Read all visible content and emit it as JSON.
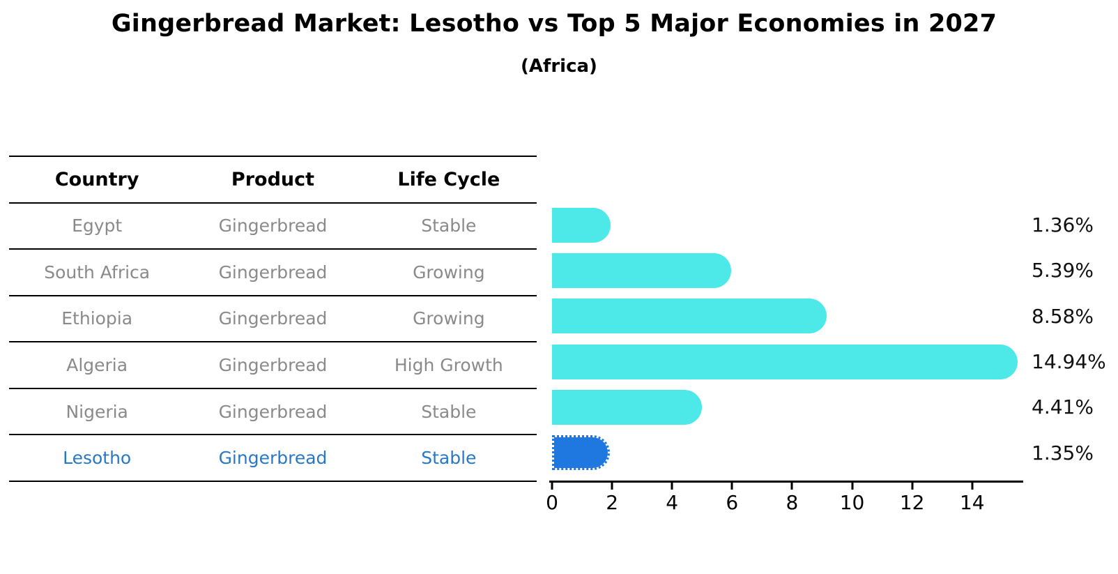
{
  "header": {
    "title": "Gingerbread Market: Lesotho vs Top 5 Major Economies in 2027",
    "subtitle": "(Africa)"
  },
  "table": {
    "headers": [
      "Country",
      "Product",
      "Life Cycle"
    ],
    "rows": [
      {
        "country": "Egypt",
        "product": "Gingerbread",
        "life_cycle": "Stable",
        "highlighted": false
      },
      {
        "country": "South Africa",
        "product": "Gingerbread",
        "life_cycle": "Growing",
        "highlighted": false
      },
      {
        "country": "Ethiopia",
        "product": "Gingerbread",
        "life_cycle": "Growing",
        "highlighted": false
      },
      {
        "country": "Algeria",
        "product": "Gingerbread",
        "life_cycle": "High Growth",
        "highlighted": false
      },
      {
        "country": "Nigeria",
        "product": "Gingerbread",
        "life_cycle": "Stable",
        "highlighted": false
      },
      {
        "country": "Lesotho",
        "product": "Gingerbread",
        "life_cycle": "Stable",
        "highlighted": true
      }
    ]
  },
  "chart_data": {
    "type": "bar",
    "orientation": "horizontal",
    "title": "Gingerbread Market: Lesotho vs Top 5 Major Economies in 2027",
    "subtitle": "(Africa)",
    "categories": [
      "Egypt",
      "South Africa",
      "Ethiopia",
      "Algeria",
      "Nigeria",
      "Lesotho"
    ],
    "values": [
      1.36,
      5.39,
      8.58,
      14.94,
      4.41,
      1.35
    ],
    "value_labels": [
      "1.36%",
      "5.39%",
      "8.58%",
      "14.94%",
      "4.41%",
      "1.35%"
    ],
    "units": "%",
    "x_ticks": [
      0,
      2,
      4,
      6,
      8,
      10,
      12,
      14
    ],
    "xlim": [
      0,
      15.7
    ],
    "highlight_index": 5,
    "grid": false,
    "legend": false
  },
  "colors": {
    "bar_default": "#4DE8E8",
    "bar_highlight": "#1E78E0",
    "text_muted": "#8A8A8A",
    "text_highlight": "#2878C8",
    "axis": "#000000",
    "value_label": "#111111"
  }
}
